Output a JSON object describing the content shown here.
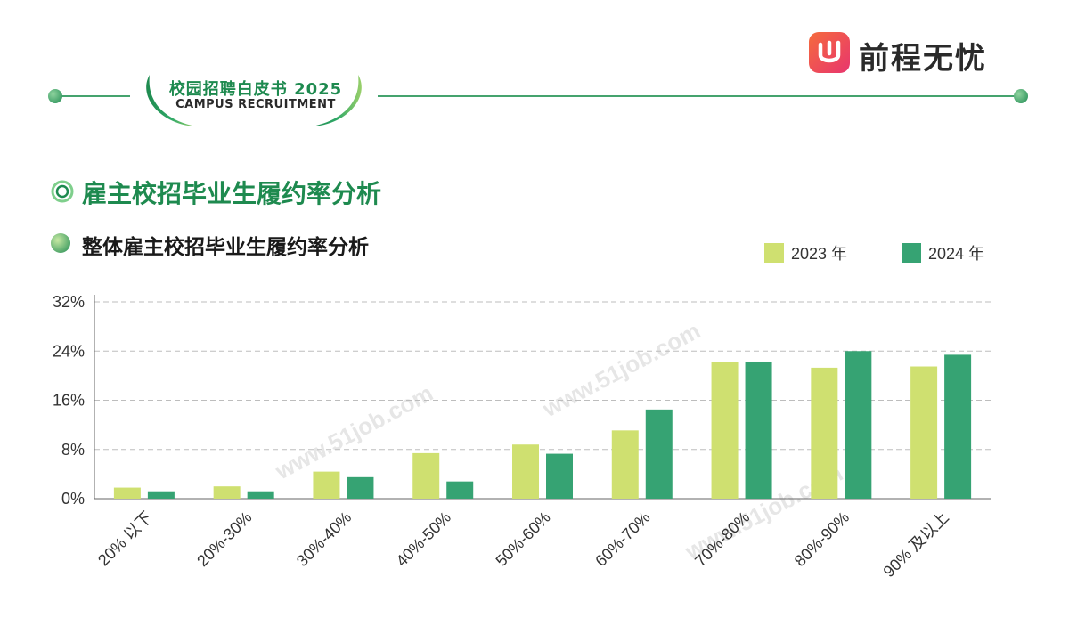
{
  "header": {
    "badge_title": "校园招聘白皮书 2025",
    "badge_subtitle": "CAMPUS RECRUITMENT",
    "logo_text": "前程无忧",
    "watermark": "www.51job.com"
  },
  "section": {
    "title": "雇主校招毕业生履约率分析",
    "subtitle": "整体雇主校招毕业生履约率分析"
  },
  "colors": {
    "accent": "#1e8a4f",
    "series_2023": "#cfe070",
    "series_2024": "#36a373"
  },
  "chart_data": {
    "type": "bar",
    "categories": [
      "20% 以下",
      "20%-30%",
      "30%-40%",
      "40%-50%",
      "50%-60%",
      "60%-70%",
      "70%-80%",
      "80%-90%",
      "90% 及以上"
    ],
    "series": [
      {
        "name": "2023 年",
        "values": [
          1.8,
          2.0,
          4.4,
          7.4,
          8.8,
          11.1,
          22.2,
          21.3,
          21.5
        ]
      },
      {
        "name": "2024 年",
        "values": [
          1.2,
          1.2,
          3.5,
          2.8,
          7.3,
          14.5,
          22.3,
          24.0,
          23.4
        ]
      }
    ],
    "yticks": [
      "0%",
      "8%",
      "16%",
      "24%",
      "32%"
    ],
    "ylim": [
      0,
      32
    ],
    "legend": "top-right",
    "grid": true
  }
}
